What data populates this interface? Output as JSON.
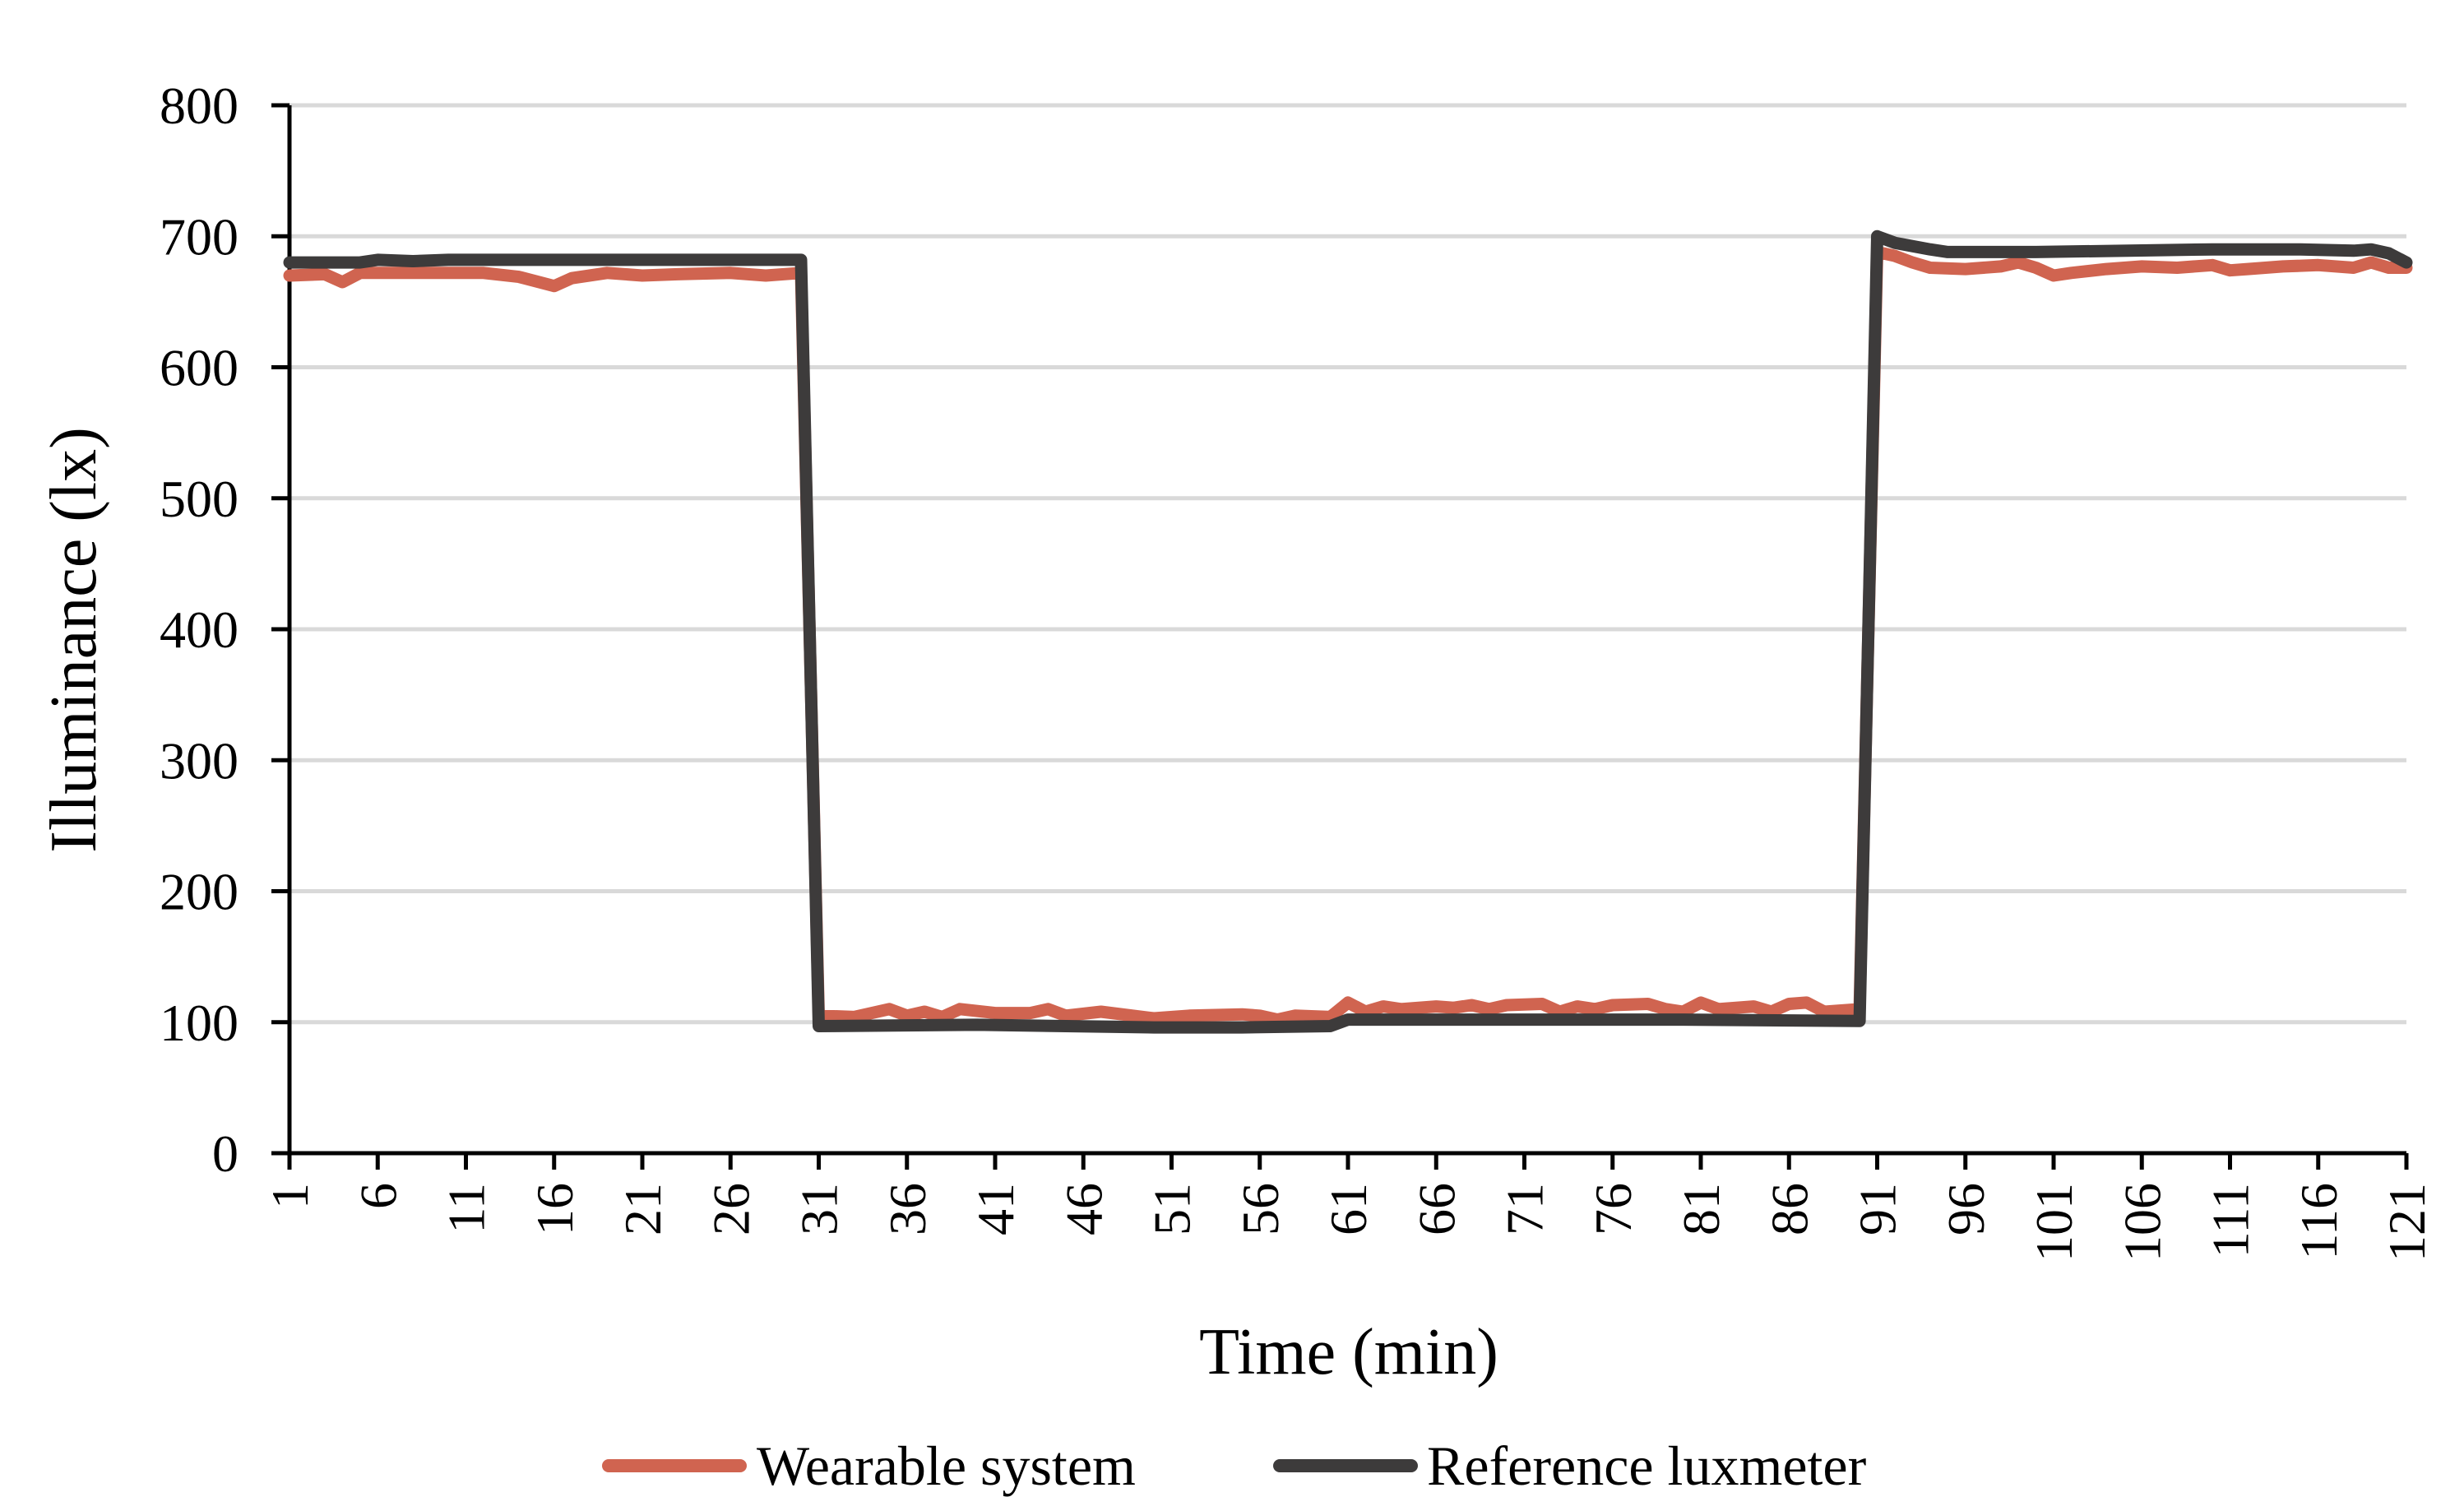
{
  "chart_data": {
    "type": "line",
    "xlabel": "Time (min)",
    "ylabel": "Illuminance (lx)",
    "ylim": [
      0,
      800
    ],
    "yticks": [
      0,
      100,
      200,
      300,
      400,
      500,
      600,
      700,
      800
    ],
    "xlim": [
      1,
      121
    ],
    "xticks": [
      1,
      6,
      11,
      16,
      21,
      26,
      31,
      36,
      41,
      46,
      51,
      56,
      61,
      66,
      71,
      76,
      81,
      86,
      91,
      96,
      101,
      106,
      111,
      116,
      121
    ],
    "grid": "horizontal",
    "legend": "bottom",
    "series": [
      {
        "name": "Wearable system",
        "color": "#d06450",
        "points": [
          [
            1,
            670
          ],
          [
            3,
            671
          ],
          [
            4,
            665
          ],
          [
            5,
            672
          ],
          [
            8,
            672
          ],
          [
            12,
            672
          ],
          [
            14,
            669
          ],
          [
            16,
            662
          ],
          [
            17,
            668
          ],
          [
            19,
            672
          ],
          [
            21,
            670
          ],
          [
            23,
            671
          ],
          [
            26,
            672
          ],
          [
            28,
            670
          ],
          [
            30,
            672
          ],
          [
            31,
            105
          ],
          [
            33,
            104
          ],
          [
            35,
            110
          ],
          [
            36,
            105
          ],
          [
            37,
            108
          ],
          [
            38,
            104
          ],
          [
            39,
            110
          ],
          [
            41,
            107
          ],
          [
            43,
            107
          ],
          [
            44,
            110
          ],
          [
            45,
            105
          ],
          [
            47,
            108
          ],
          [
            50,
            103
          ],
          [
            52,
            105
          ],
          [
            55,
            106
          ],
          [
            56,
            105
          ],
          [
            57,
            102
          ],
          [
            58,
            105
          ],
          [
            60,
            104
          ],
          [
            61,
            115
          ],
          [
            62,
            108
          ],
          [
            63,
            112
          ],
          [
            64,
            110
          ],
          [
            66,
            112
          ],
          [
            67,
            111
          ],
          [
            68,
            113
          ],
          [
            69,
            110
          ],
          [
            70,
            113
          ],
          [
            72,
            114
          ],
          [
            73,
            108
          ],
          [
            74,
            112
          ],
          [
            75,
            110
          ],
          [
            76,
            113
          ],
          [
            78,
            114
          ],
          [
            79,
            110
          ],
          [
            80,
            108
          ],
          [
            81,
            115
          ],
          [
            82,
            110
          ],
          [
            84,
            112
          ],
          [
            85,
            108
          ],
          [
            86,
            114
          ],
          [
            87,
            115
          ],
          [
            88,
            108
          ],
          [
            90,
            110
          ],
          [
            91,
            688
          ],
          [
            92,
            685
          ],
          [
            93,
            680
          ],
          [
            94,
            676
          ],
          [
            96,
            675
          ],
          [
            98,
            677
          ],
          [
            99,
            680
          ],
          [
            100,
            676
          ],
          [
            101,
            670
          ],
          [
            102,
            672
          ],
          [
            104,
            675
          ],
          [
            106,
            677
          ],
          [
            108,
            676
          ],
          [
            110,
            678
          ],
          [
            111,
            674
          ],
          [
            112,
            675
          ],
          [
            114,
            677
          ],
          [
            116,
            678
          ],
          [
            118,
            676
          ],
          [
            119,
            680
          ],
          [
            120,
            676
          ],
          [
            121,
            676
          ]
        ]
      },
      {
        "name": "Reference luxmeter",
        "color": "#3d3b3b",
        "points": [
          [
            1,
            680
          ],
          [
            5,
            680
          ],
          [
            6,
            682
          ],
          [
            8,
            681
          ],
          [
            10,
            682
          ],
          [
            20,
            682
          ],
          [
            30,
            682
          ],
          [
            31,
            97
          ],
          [
            40,
            98
          ],
          [
            45,
            97
          ],
          [
            50,
            96
          ],
          [
            55,
            96
          ],
          [
            60,
            97
          ],
          [
            61,
            102
          ],
          [
            70,
            102
          ],
          [
            80,
            102
          ],
          [
            90,
            101
          ],
          [
            91,
            700
          ],
          [
            92,
            695
          ],
          [
            94,
            690
          ],
          [
            95,
            688
          ],
          [
            100,
            688
          ],
          [
            110,
            690
          ],
          [
            115,
            690
          ],
          [
            118,
            689
          ],
          [
            119,
            690
          ],
          [
            120,
            687
          ],
          [
            121,
            680
          ]
        ]
      }
    ]
  }
}
